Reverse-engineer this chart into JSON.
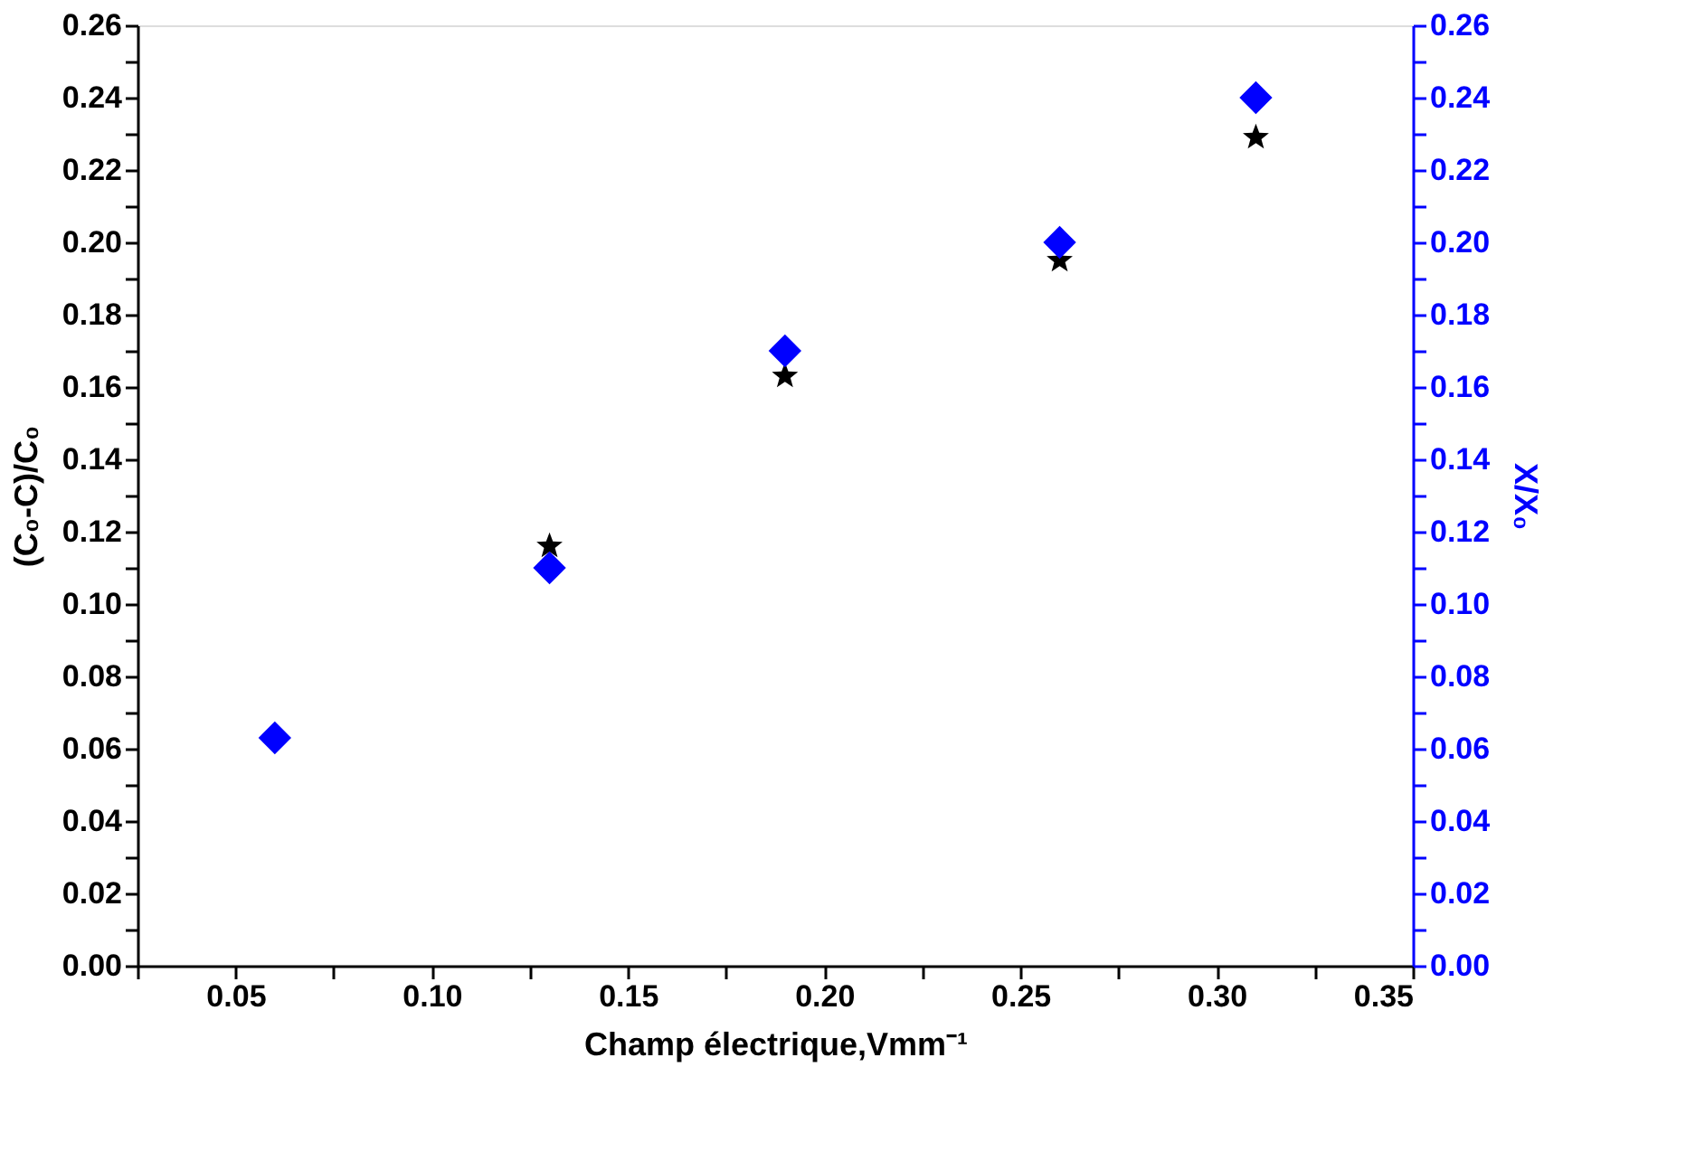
{
  "chart_data": {
    "type": "scatter",
    "xlabel": "Champ électrique,Vmm⁻¹",
    "ylabel": "(C₀-C)/C₀",
    "y2label": "X/X₀",
    "x": [
      0.06,
      0.13,
      0.19,
      0.26,
      0.31
    ],
    "series": [
      {
        "color": "#000000",
        "marker": "star",
        "values": [
          null,
          0.116,
          0.163,
          0.195,
          0.229
        ]
      },
      {
        "color": "#0000ff",
        "marker": "diamond",
        "axis": "y2",
        "values": [
          0.063,
          0.11,
          0.17,
          0.2,
          0.24
        ]
      }
    ],
    "xlim": [
      0.025,
      0.35
    ],
    "xticks": [
      {
        "value": 0.025,
        "label": null
      },
      {
        "value": 0.05,
        "label": "0.05"
      },
      {
        "value": 0.075,
        "label": null
      },
      {
        "value": 0.1,
        "label": "0.10"
      },
      {
        "value": 0.125,
        "label": null
      },
      {
        "value": 0.15,
        "label": "0.15"
      },
      {
        "value": 0.175,
        "label": null
      },
      {
        "value": 0.2,
        "label": "0.20"
      },
      {
        "value": 0.225,
        "label": null
      },
      {
        "value": 0.25,
        "label": "0.25"
      },
      {
        "value": 0.275,
        "label": null
      },
      {
        "value": 0.3,
        "label": "0.30"
      },
      {
        "value": 0.325,
        "label": null
      },
      {
        "value": 0.35,
        "label": "0.35"
      }
    ],
    "ylim": [
      0,
      0.26
    ],
    "yticks": [
      {
        "value": 0,
        "label": "0.00"
      },
      {
        "value": 0.01,
        "label": null
      },
      {
        "value": 0.02,
        "label": "0.02"
      },
      {
        "value": 0.03,
        "label": null
      },
      {
        "value": 0.04,
        "label": "0.04"
      },
      {
        "value": 0.05,
        "label": null
      },
      {
        "value": 0.06,
        "label": "0.06"
      },
      {
        "value": 0.07,
        "label": null
      },
      {
        "value": 0.08,
        "label": "0.08"
      },
      {
        "value": 0.09,
        "label": null
      },
      {
        "value": 0.1,
        "label": "0.10"
      },
      {
        "value": 0.11,
        "label": null
      },
      {
        "value": 0.12,
        "label": "0.12"
      },
      {
        "value": 0.13,
        "label": null
      },
      {
        "value": 0.14,
        "label": "0.14"
      },
      {
        "value": 0.15,
        "label": null
      },
      {
        "value": 0.16,
        "label": "0.16"
      },
      {
        "value": 0.17,
        "label": null
      },
      {
        "value": 0.18,
        "label": "0.18"
      },
      {
        "value": 0.19,
        "label": null
      },
      {
        "value": 0.2,
        "label": "0.20"
      },
      {
        "value": 0.21,
        "label": null
      },
      {
        "value": 0.22,
        "label": "0.22"
      },
      {
        "value": 0.23,
        "label": null
      },
      {
        "value": 0.24,
        "label": "0.24"
      },
      {
        "value": 0.25,
        "label": null
      },
      {
        "value": 0.26,
        "label": "0.26"
      }
    ],
    "y2lim": [
      0,
      0.26
    ],
    "y2ticks": [
      {
        "value": 0,
        "label": "0.00"
      },
      {
        "value": 0.01,
        "label": null
      },
      {
        "value": 0.02,
        "label": "0.02"
      },
      {
        "value": 0.03,
        "label": null
      },
      {
        "value": 0.04,
        "label": "0.04"
      },
      {
        "value": 0.05,
        "label": null
      },
      {
        "value": 0.06,
        "label": "0.06"
      },
      {
        "value": 0.07,
        "label": null
      },
      {
        "value": 0.08,
        "label": "0.08"
      },
      {
        "value": 0.09,
        "label": null
      },
      {
        "value": 0.1,
        "label": "0.10"
      },
      {
        "value": 0.11,
        "label": null
      },
      {
        "value": 0.12,
        "label": "0.12"
      },
      {
        "value": 0.13,
        "label": null
      },
      {
        "value": 0.14,
        "label": "0.14"
      },
      {
        "value": 0.15,
        "label": null
      },
      {
        "value": 0.16,
        "label": "0.16"
      },
      {
        "value": 0.17,
        "label": null
      },
      {
        "value": 0.18,
        "label": "0.18"
      },
      {
        "value": 0.19,
        "label": null
      },
      {
        "value": 0.2,
        "label": "0.20"
      },
      {
        "value": 0.21,
        "label": null
      },
      {
        "value": 0.22,
        "label": "0.22"
      },
      {
        "value": 0.23,
        "label": null
      },
      {
        "value": 0.24,
        "label": "0.24"
      },
      {
        "value": 0.25,
        "label": null
      },
      {
        "value": 0.26,
        "label": "0.26"
      }
    ],
    "grid": false
  }
}
